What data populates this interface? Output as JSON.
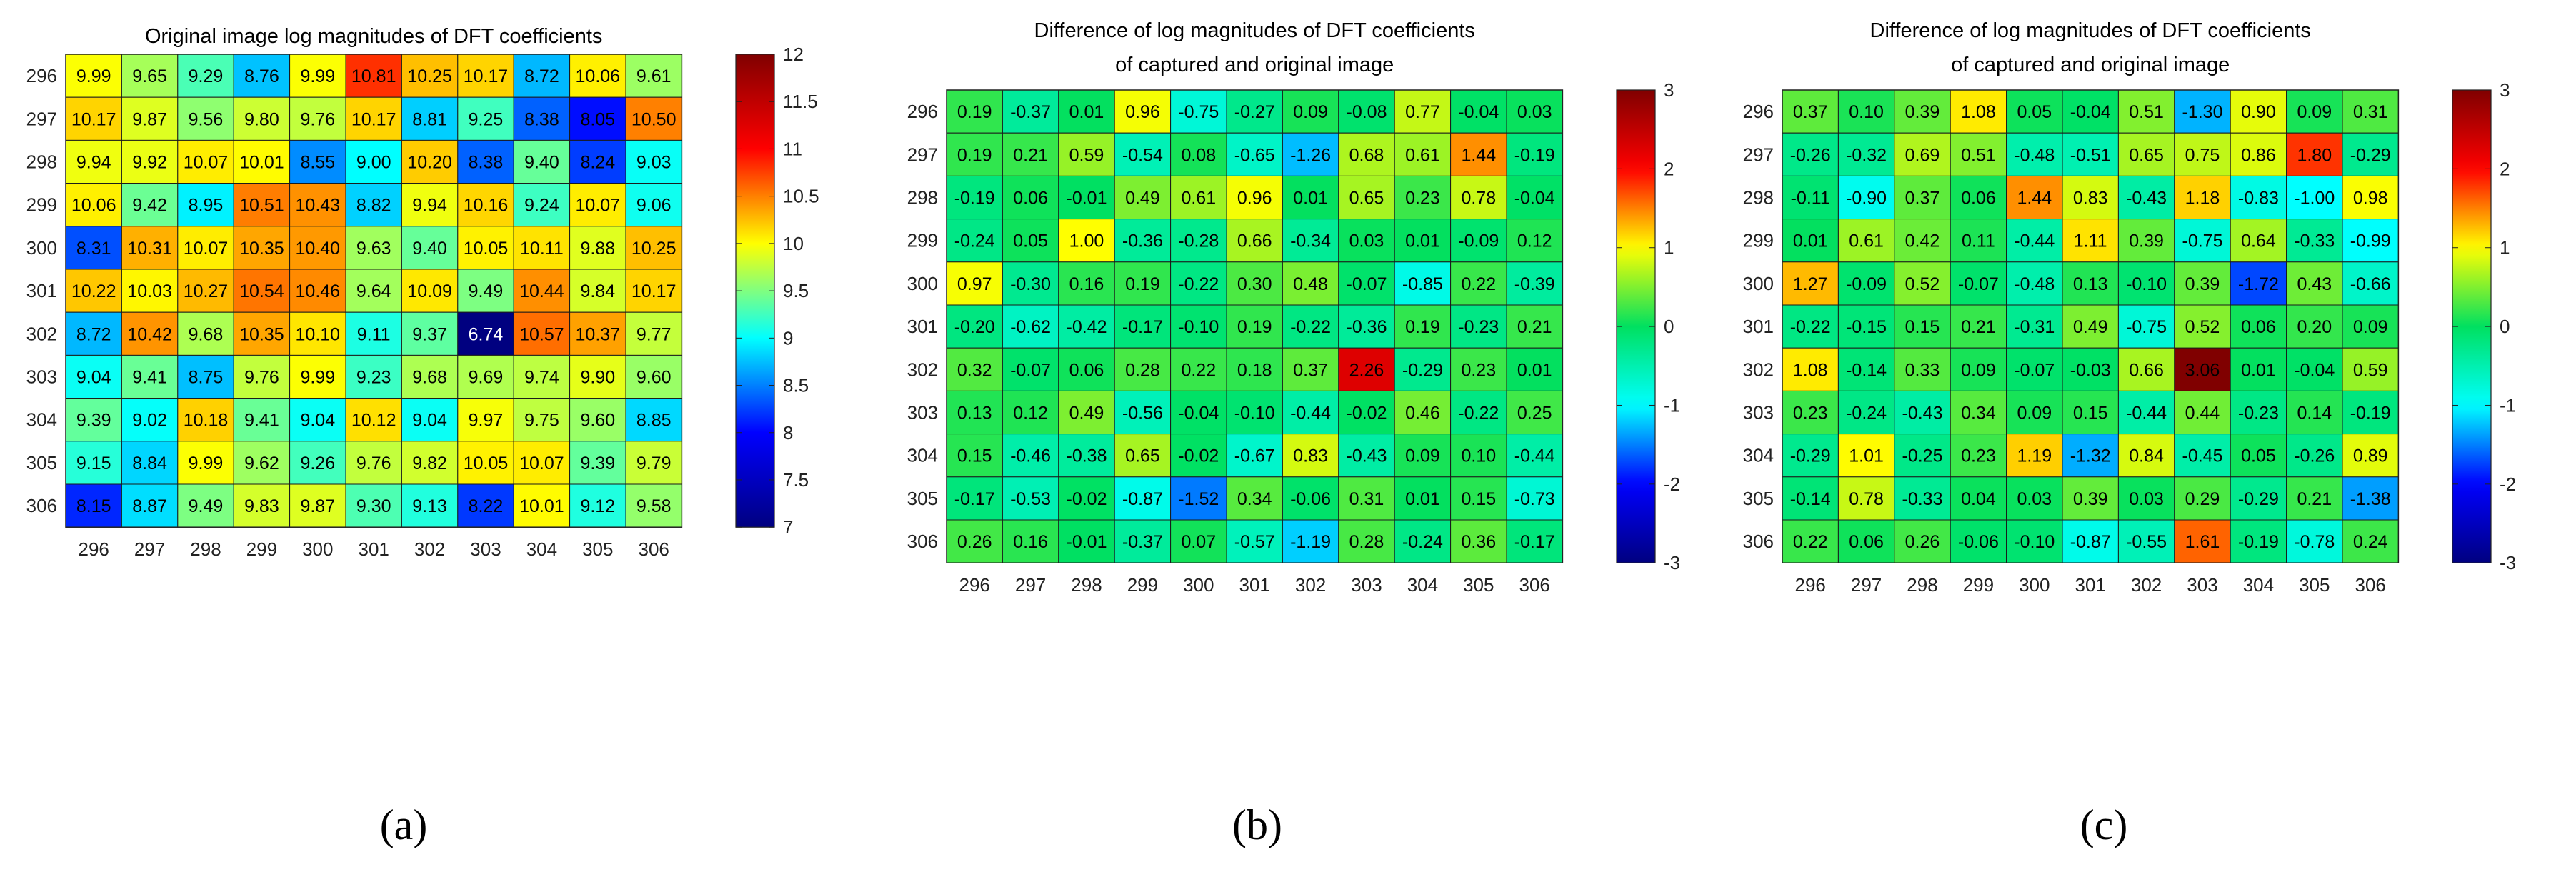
{
  "figure": {
    "panel_labels": [
      "(a)",
      "(b)",
      "(c)"
    ]
  },
  "chart_data": [
    {
      "type": "heatmap",
      "title_lines": [
        "Original image log magnitudes of DFT coefficients"
      ],
      "x_ticks": [
        "296",
        "297",
        "298",
        "299",
        "300",
        "301",
        "302",
        "303",
        "304",
        "305",
        "306"
      ],
      "y_ticks": [
        "296",
        "297",
        "298",
        "299",
        "300",
        "301",
        "302",
        "303",
        "304",
        "305",
        "306"
      ],
      "clim": [
        7,
        12
      ],
      "colorbar_ticks": [
        "7",
        "7.5",
        "8",
        "8.5",
        "9",
        "9.5",
        "10",
        "10.5",
        "11",
        "11.5",
        "12"
      ],
      "colorbar_values": [
        7,
        7.5,
        8,
        8.5,
        9,
        9.5,
        10,
        10.5,
        11,
        11.5,
        12
      ],
      "colormap": [
        "#000080",
        "#0000ff",
        "#00ffff",
        "#ffff00",
        "#ff0000",
        "#800000"
      ],
      "values": [
        [
          9.99,
          9.65,
          9.29,
          8.76,
          9.99,
          10.81,
          10.25,
          10.17,
          8.72,
          10.06,
          9.61
        ],
        [
          10.17,
          9.87,
          9.56,
          9.8,
          9.76,
          10.17,
          8.81,
          9.25,
          8.38,
          8.05,
          10.5
        ],
        [
          9.94,
          9.92,
          10.07,
          10.01,
          8.55,
          9.0,
          10.2,
          8.38,
          9.4,
          8.24,
          9.03
        ],
        [
          10.06,
          9.42,
          8.95,
          10.51,
          10.43,
          8.82,
          9.94,
          10.16,
          9.24,
          10.07,
          9.06
        ],
        [
          8.31,
          10.31,
          10.07,
          10.35,
          10.4,
          9.63,
          9.4,
          10.05,
          10.11,
          9.88,
          10.25
        ],
        [
          10.22,
          10.03,
          10.27,
          10.54,
          10.46,
          9.64,
          10.09,
          9.49,
          10.44,
          9.84,
          10.17
        ],
        [
          8.72,
          10.42,
          9.68,
          10.35,
          10.1,
          9.11,
          9.37,
          6.74,
          10.57,
          10.37,
          9.77
        ],
        [
          9.04,
          9.41,
          8.75,
          9.76,
          9.99,
          9.23,
          9.68,
          9.69,
          9.74,
          9.9,
          9.6
        ],
        [
          9.39,
          9.02,
          10.18,
          9.41,
          9.04,
          10.12,
          9.04,
          9.97,
          9.75,
          9.6,
          8.85
        ],
        [
          9.15,
          8.84,
          9.99,
          9.62,
          9.26,
          9.76,
          9.82,
          10.05,
          10.07,
          9.39,
          9.79
        ],
        [
          8.15,
          8.87,
          9.49,
          9.83,
          9.87,
          9.3,
          9.13,
          8.22,
          10.01,
          9.12,
          9.58
        ]
      ],
      "labels": [
        [
          "9.99",
          "9.65",
          "9.29",
          "8.76",
          "9.99",
          "10.81",
          "10.25",
          "10.17",
          "8.72",
          "10.06",
          "9.61"
        ],
        [
          "10.17",
          "9.87",
          "9.56",
          "9.80",
          "9.76",
          "10.17",
          "8.81",
          "9.25",
          "8.38",
          "8.05",
          "10.50"
        ],
        [
          "9.94",
          "9.92",
          "10.07",
          "10.01",
          "8.55",
          "9.00",
          "10.20",
          "8.38",
          "9.40",
          "8.24",
          "9.03"
        ],
        [
          "10.06",
          "9.42",
          "8.95",
          "10.51",
          "10.43",
          "8.82",
          "9.94",
          "10.16",
          "9.24",
          "10.07",
          "9.06"
        ],
        [
          "8.31",
          "10.31",
          "10.07",
          "10.35",
          "10.40",
          "9.63",
          "9.40",
          "10.05",
          "10.11",
          "9.88",
          "10.25"
        ],
        [
          "10.22",
          "10.03",
          "10.27",
          "10.54",
          "10.46",
          "9.64",
          "10.09",
          "9.49",
          "10.44",
          "9.84",
          "10.17"
        ],
        [
          "8.72",
          "10.42",
          "9.68",
          "10.35",
          "10.10",
          "9.11",
          "9.37",
          "6.74",
          "10.57",
          "10.37",
          "9.77"
        ],
        [
          "9.04",
          "9.41",
          "8.75",
          "9.76",
          "9.99",
          "9.23",
          "9.68",
          "9.69",
          "9.74",
          "9.90",
          "9.60"
        ],
        [
          "9.39",
          "9.02",
          "10.18",
          "9.41",
          "9.04",
          "10.12",
          "9.04",
          "9.97",
          "9.75",
          "9.60",
          "8.85"
        ],
        [
          "9.15",
          "8.84",
          "9.99",
          "9.62",
          "9.26",
          "9.76",
          "9.82",
          "10.05",
          "10.07",
          "9.39",
          "9.79"
        ],
        [
          "8.15",
          "8.87",
          "9.49",
          "9.83",
          "9.87",
          "9.30",
          "9.13",
          "8.22",
          "10.01",
          "9.12",
          "9.58"
        ]
      ]
    },
    {
      "type": "heatmap",
      "title_lines": [
        "Difference of log magnitudes of DFT coefficients",
        "of captured and original image"
      ],
      "x_ticks": [
        "296",
        "297",
        "298",
        "299",
        "300",
        "301",
        "302",
        "303",
        "304",
        "305",
        "306"
      ],
      "y_ticks": [
        "296",
        "297",
        "298",
        "299",
        "300",
        "301",
        "302",
        "303",
        "304",
        "305",
        "306"
      ],
      "clim": [
        -3,
        3
      ],
      "colorbar_ticks": [
        "-3",
        "-2",
        "-1",
        "0",
        "1",
        "2",
        "3"
      ],
      "colorbar_values": [
        -3,
        -2,
        -1,
        0,
        1,
        2,
        3
      ],
      "colormap": [
        "#000080",
        "#0000ff",
        "#00ffff",
        "#00e060",
        "#ffff00",
        "#ff0000",
        "#800000"
      ],
      "values": [
        [
          0.19,
          -0.37,
          0.01,
          0.96,
          -0.75,
          -0.27,
          0.09,
          -0.08,
          0.77,
          -0.04,
          0.03
        ],
        [
          0.19,
          0.21,
          0.59,
          -0.54,
          0.08,
          -0.65,
          -1.26,
          0.68,
          0.61,
          1.44,
          -0.19
        ],
        [
          -0.19,
          0.06,
          -0.01,
          0.49,
          0.61,
          0.96,
          0.01,
          0.65,
          0.23,
          0.78,
          -0.04
        ],
        [
          -0.24,
          0.05,
          1.0,
          -0.36,
          -0.28,
          0.66,
          -0.34,
          0.03,
          0.01,
          -0.09,
          0.12
        ],
        [
          0.97,
          -0.3,
          0.16,
          0.19,
          -0.22,
          0.3,
          0.48,
          -0.07,
          -0.85,
          0.22,
          -0.39
        ],
        [
          -0.2,
          -0.62,
          -0.42,
          -0.17,
          -0.1,
          0.19,
          -0.22,
          -0.36,
          0.19,
          -0.23,
          0.21
        ],
        [
          0.32,
          -0.07,
          0.06,
          0.28,
          0.22,
          0.18,
          0.37,
          2.26,
          -0.29,
          0.23,
          0.01
        ],
        [
          0.13,
          0.12,
          0.49,
          -0.56,
          -0.04,
          -0.1,
          -0.44,
          -0.02,
          0.46,
          -0.22,
          0.25
        ],
        [
          0.15,
          -0.46,
          -0.38,
          0.65,
          -0.02,
          -0.67,
          0.83,
          -0.43,
          0.09,
          0.1,
          -0.44
        ],
        [
          -0.17,
          -0.53,
          -0.02,
          -0.87,
          -1.52,
          0.34,
          -0.06,
          0.31,
          0.01,
          0.15,
          -0.73
        ],
        [
          0.26,
          0.16,
          -0.01,
          -0.37,
          0.07,
          -0.57,
          -1.19,
          0.28,
          -0.24,
          0.36,
          -0.17
        ]
      ],
      "labels": [
        [
          "0.19",
          "-0.37",
          "0.01",
          "0.96",
          "-0.75",
          "-0.27",
          "0.09",
          "-0.08",
          "0.77",
          "-0.04",
          "0.03"
        ],
        [
          "0.19",
          "0.21",
          "0.59",
          "-0.54",
          "0.08",
          "-0.65",
          "-1.26",
          "0.68",
          "0.61",
          "1.44",
          "-0.19"
        ],
        [
          "-0.19",
          "0.06",
          "-0.01",
          "0.49",
          "0.61",
          "0.96",
          "0.01",
          "0.65",
          "0.23",
          "0.78",
          "-0.04"
        ],
        [
          "-0.24",
          "0.05",
          "1.00",
          "-0.36",
          "-0.28",
          "0.66",
          "-0.34",
          "0.03",
          "0.01",
          "-0.09",
          "0.12"
        ],
        [
          "0.97",
          "-0.30",
          "0.16",
          "0.19",
          "-0.22",
          "0.30",
          "0.48",
          "-0.07",
          "-0.85",
          "0.22",
          "-0.39"
        ],
        [
          "-0.20",
          "-0.62",
          "-0.42",
          "-0.17",
          "-0.10",
          "0.19",
          "-0.22",
          "-0.36",
          "0.19",
          "-0.23",
          "0.21"
        ],
        [
          "0.32",
          "-0.07",
          "0.06",
          "0.28",
          "0.22",
          "0.18",
          "0.37",
          "2.26",
          "-0.29",
          "0.23",
          "0.01"
        ],
        [
          "0.13",
          "0.12",
          "0.49",
          "-0.56",
          "-0.04",
          "-0.10",
          "-0.44",
          "-0.02",
          "0.46",
          "-0.22",
          "0.25"
        ],
        [
          "0.15",
          "-0.46",
          "-0.38",
          "0.65",
          "-0.02",
          "-0.67",
          "0.83",
          "-0.43",
          "0.09",
          "0.10",
          "-0.44"
        ],
        [
          "-0.17",
          "-0.53",
          "-0.02",
          "-0.87",
          "-1.52",
          "0.34",
          "-0.06",
          "0.31",
          "0.01",
          "0.15",
          "-0.73"
        ],
        [
          "0.26",
          "0.16",
          "-0.01",
          "-0.37",
          "0.07",
          "-0.57",
          "-1.19",
          "0.28",
          "-0.24",
          "0.36",
          "-0.17"
        ]
      ]
    },
    {
      "type": "heatmap",
      "title_lines": [
        "Difference of log magnitudes of DFT coefficients",
        "of captured and original image"
      ],
      "x_ticks": [
        "296",
        "297",
        "298",
        "299",
        "300",
        "301",
        "302",
        "303",
        "304",
        "305",
        "306"
      ],
      "y_ticks": [
        "296",
        "297",
        "298",
        "299",
        "300",
        "301",
        "302",
        "303",
        "304",
        "305",
        "306"
      ],
      "clim": [
        -3,
        3
      ],
      "colorbar_ticks": [
        "-3",
        "-2",
        "-1",
        "0",
        "1",
        "2",
        "3"
      ],
      "colorbar_values": [
        -3,
        -2,
        -1,
        0,
        1,
        2,
        3
      ],
      "colormap": [
        "#000080",
        "#0000ff",
        "#00ffff",
        "#00e060",
        "#ffff00",
        "#ff0000",
        "#800000"
      ],
      "values": [
        [
          0.37,
          0.1,
          0.39,
          1.08,
          0.05,
          -0.04,
          0.51,
          -1.3,
          0.9,
          0.09,
          0.31
        ],
        [
          -0.26,
          -0.32,
          0.69,
          0.51,
          -0.48,
          -0.51,
          0.65,
          0.75,
          0.86,
          1.8,
          -0.29
        ],
        [
          -0.11,
          -0.9,
          0.37,
          0.06,
          1.44,
          0.83,
          -0.43,
          1.18,
          -0.83,
          -1.0,
          0.98
        ],
        [
          0.01,
          0.61,
          0.42,
          0.11,
          -0.44,
          1.11,
          0.39,
          -0.75,
          0.64,
          -0.33,
          -0.99
        ],
        [
          1.27,
          -0.09,
          0.52,
          -0.07,
          -0.48,
          0.13,
          -0.1,
          0.39,
          -1.72,
          0.43,
          -0.66
        ],
        [
          -0.22,
          -0.15,
          0.15,
          0.21,
          -0.31,
          0.49,
          -0.75,
          0.52,
          0.06,
          0.2,
          0.09
        ],
        [
          1.08,
          -0.14,
          0.33,
          0.09,
          -0.07,
          -0.03,
          0.66,
          3.06,
          0.01,
          -0.04,
          0.59
        ],
        [
          0.23,
          -0.24,
          -0.43,
          0.34,
          0.09,
          0.15,
          -0.44,
          0.44,
          -0.23,
          0.14,
          -0.19
        ],
        [
          -0.29,
          1.01,
          -0.25,
          0.23,
          1.19,
          -1.32,
          0.84,
          -0.45,
          0.05,
          -0.26,
          0.89
        ],
        [
          -0.14,
          0.78,
          -0.33,
          0.04,
          0.03,
          0.39,
          0.03,
          0.29,
          -0.29,
          0.21,
          -1.38
        ],
        [
          0.22,
          0.06,
          0.26,
          -0.06,
          -0.1,
          -0.87,
          -0.55,
          1.61,
          -0.19,
          -0.78,
          0.24
        ]
      ],
      "labels": [
        [
          "0.37",
          "0.10",
          "0.39",
          "1.08",
          "0.05",
          "-0.04",
          "0.51",
          "-1.30",
          "0.90",
          "0.09",
          "0.31"
        ],
        [
          "-0.26",
          "-0.32",
          "0.69",
          "0.51",
          "-0.48",
          "-0.51",
          "0.65",
          "0.75",
          "0.86",
          "1.80",
          "-0.29"
        ],
        [
          "-0.11",
          "-0.90",
          "0.37",
          "0.06",
          "1.44",
          "0.83",
          "-0.43",
          "1.18",
          "-0.83",
          "-1.00",
          "0.98"
        ],
        [
          "0.01",
          "0.61",
          "0.42",
          "0.11",
          "-0.44",
          "1.11",
          "0.39",
          "-0.75",
          "0.64",
          "-0.33",
          "-0.99"
        ],
        [
          "1.27",
          "-0.09",
          "0.52",
          "-0.07",
          "-0.48",
          "0.13",
          "-0.10",
          "0.39",
          "-1.72",
          "0.43",
          "-0.66"
        ],
        [
          "-0.22",
          "-0.15",
          "0.15",
          "0.21",
          "-0.31",
          "0.49",
          "-0.75",
          "0.52",
          "0.06",
          "0.20",
          "0.09"
        ],
        [
          "1.08",
          "-0.14",
          "0.33",
          "0.09",
          "-0.07",
          "-0.03",
          "0.66",
          "3.06",
          "0.01",
          "-0.04",
          "0.59"
        ],
        [
          "0.23",
          "-0.24",
          "-0.43",
          "0.34",
          "0.09",
          "0.15",
          "-0.44",
          "0.44",
          "-0.23",
          "0.14",
          "-0.19"
        ],
        [
          "-0.29",
          "1.01",
          "-0.25",
          "0.23",
          "1.19",
          "-1.32",
          "0.84",
          "-0.45",
          "0.05",
          "-0.26",
          "0.89"
        ],
        [
          "-0.14",
          "0.78",
          "-0.33",
          "0.04",
          "0.03",
          "0.39",
          "0.03",
          "0.29",
          "-0.29",
          "0.21",
          "-1.38"
        ],
        [
          "0.22",
          "0.06",
          "0.26",
          "-0.06",
          "-0.10",
          "-0.87",
          "-0.55",
          "1.61",
          "-0.19",
          "-0.78",
          "0.24"
        ]
      ]
    }
  ]
}
